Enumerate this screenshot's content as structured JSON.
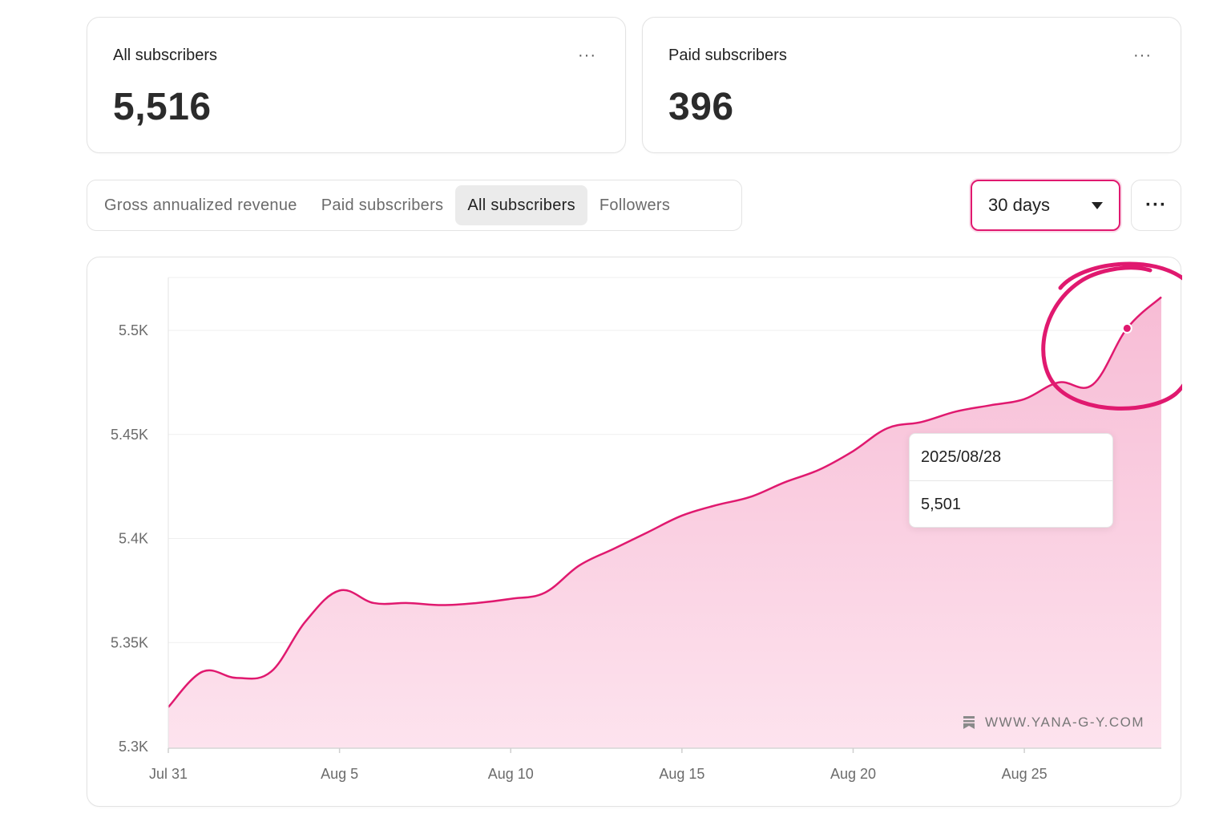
{
  "stats": {
    "all": {
      "label": "All subscribers",
      "value": "5,516",
      "more": "···"
    },
    "paid": {
      "label": "Paid subscribers",
      "value": "396",
      "more": "···"
    }
  },
  "tabs": [
    {
      "label": "Gross annualized revenue",
      "active": false
    },
    {
      "label": "Paid subscribers",
      "active": false
    },
    {
      "label": "All subscribers",
      "active": true
    },
    {
      "label": "Followers",
      "active": false
    }
  ],
  "range": {
    "value": "30 days"
  },
  "chart_more": "···",
  "tooltip": {
    "date": "2025/08/28",
    "value": "5,501"
  },
  "watermark": "WWW.YANA-G-Y.COM",
  "colors": {
    "accent": "#e0196f",
    "fill_top": "#f7bcd5",
    "fill_bottom": "#fde3ee",
    "grid": "#efefef"
  },
  "chart_data": {
    "type": "area",
    "title": "All subscribers",
    "xlabel": "",
    "ylabel": "",
    "ylim": [
      5300,
      5525
    ],
    "yticks": [
      5300,
      5350,
      5400,
      5450,
      5500
    ],
    "ytick_labels": [
      "5.3K",
      "5.35K",
      "5.4K",
      "5.45K",
      "5.5K"
    ],
    "xticks": [
      0,
      5,
      10,
      15,
      20,
      25
    ],
    "xtick_labels": [
      "Jul 31",
      "Aug 5",
      "Aug 10",
      "Aug 15",
      "Aug 20",
      "Aug 25"
    ],
    "x_day_index": [
      0,
      1,
      2,
      3,
      4,
      5,
      6,
      7,
      8,
      9,
      10,
      11,
      12,
      13,
      14,
      15,
      16,
      17,
      18,
      19,
      20,
      21,
      22,
      23,
      24,
      25,
      26,
      27,
      28,
      29
    ],
    "series": [
      {
        "name": "All subscribers",
        "values": [
          5319,
          5336,
          5333,
          5336,
          5360,
          5375,
          5369,
          5369,
          5368,
          5369,
          5371,
          5374,
          5387,
          5395,
          5403,
          5411,
          5416,
          5420,
          5427,
          5433,
          5442,
          5453,
          5456,
          5461,
          5464,
          5467,
          5475,
          5474,
          5501,
          5516
        ]
      }
    ],
    "highlight": {
      "index": 28,
      "date": "2025/08/28",
      "value": 5501
    },
    "grid": true
  }
}
